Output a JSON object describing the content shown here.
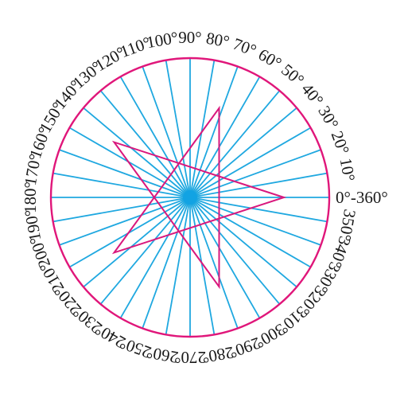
{
  "diagram": {
    "ray_step_deg": 10,
    "colors": {
      "rays": "#1fa8e0",
      "circle": "#e0167a",
      "star": "#d9187d",
      "center": "#12a3e3",
      "labels": "#1a1a1a"
    },
    "star_vertex_angles_deg": [
      0,
      72,
      144,
      216,
      288
    ],
    "star_order": [
      0,
      2,
      4,
      1,
      3
    ],
    "labels": [
      {
        "text": "0°-360°",
        "angle": 0
      },
      {
        "text": "10°",
        "angle": 10
      },
      {
        "text": "20°",
        "angle": 20
      },
      {
        "text": "30°",
        "angle": 30
      },
      {
        "text": "40°",
        "angle": 40
      },
      {
        "text": "50°",
        "angle": 50
      },
      {
        "text": "60°",
        "angle": 60
      },
      {
        "text": "70°",
        "angle": 70
      },
      {
        "text": "80°",
        "angle": 80
      },
      {
        "text": "90°",
        "angle": 90
      },
      {
        "text": "100°",
        "angle": 100
      },
      {
        "text": "110°",
        "angle": 110
      },
      {
        "text": "120°",
        "angle": 120
      },
      {
        "text": "130°",
        "angle": 130
      },
      {
        "text": "140°",
        "angle": 140
      },
      {
        "text": "150°",
        "angle": 150
      },
      {
        "text": "160°",
        "angle": 160
      },
      {
        "text": "170°",
        "angle": 170
      },
      {
        "text": "180°",
        "angle": 180
      },
      {
        "text": "190°",
        "angle": 190
      },
      {
        "text": "200°",
        "angle": 200
      },
      {
        "text": "210°",
        "angle": 210
      },
      {
        "text": "220°",
        "angle": 220
      },
      {
        "text": "230°",
        "angle": 230
      },
      {
        "text": "240°",
        "angle": 240
      },
      {
        "text": "250°",
        "angle": 250
      },
      {
        "text": "260°",
        "angle": 260
      },
      {
        "text": "270°",
        "angle": 270
      },
      {
        "text": "280°",
        "angle": 280
      },
      {
        "text": "290°",
        "angle": 290
      },
      {
        "text": "300°",
        "angle": 300
      },
      {
        "text": "310°",
        "angle": 310
      },
      {
        "text": "320°",
        "angle": 320
      },
      {
        "text": "330°",
        "angle": 330
      },
      {
        "text": "340°",
        "angle": 340
      },
      {
        "text": "350°",
        "angle": 350
      }
    ]
  }
}
